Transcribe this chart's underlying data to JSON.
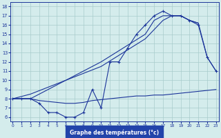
{
  "title": "Graphe des températures (°c)",
  "bg_color": "#d4ecec",
  "line_color": "#1a3399",
  "grid_color": "#a8cccc",
  "label_bg": "#2244aa",
  "xlim": [
    -0.3,
    23.3
  ],
  "ylim": [
    5.5,
    18.5
  ],
  "xticks": [
    0,
    1,
    2,
    3,
    4,
    5,
    6,
    7,
    8,
    9,
    10,
    11,
    12,
    13,
    14,
    15,
    16,
    17,
    18,
    19,
    20,
    21,
    22,
    23
  ],
  "yticks": [
    6,
    7,
    8,
    9,
    10,
    11,
    12,
    13,
    14,
    15,
    16,
    17,
    18
  ],
  "hours": [
    0,
    1,
    2,
    3,
    4,
    5,
    6,
    7,
    8,
    9,
    10,
    11,
    12,
    13,
    14,
    15,
    16,
    17,
    18,
    19,
    20,
    21,
    22,
    23
  ],
  "temp_main": [
    8.0,
    8.0,
    8.0,
    7.5,
    6.5,
    6.5,
    6.0,
    6.0,
    6.5,
    9.0,
    7.0,
    12.0,
    12.0,
    13.5,
    15.0,
    16.0,
    17.0,
    17.5,
    17.0,
    17.0,
    16.5,
    16.0,
    12.5,
    11.0
  ],
  "temp_upper_x": [
    0,
    2,
    10,
    15,
    16,
    17,
    18,
    19,
    20,
    21,
    22,
    23
  ],
  "temp_upper_y": [
    8.0,
    8.0,
    12.0,
    15.0,
    16.5,
    17.0,
    17.0,
    17.0,
    16.5,
    16.2,
    12.5,
    11.0
  ],
  "temp_upper2_x": [
    0,
    2,
    10,
    15,
    16,
    17,
    18,
    19,
    20,
    21
  ],
  "temp_upper2_y": [
    8.0,
    8.5,
    11.5,
    14.5,
    15.5,
    16.5,
    17.0,
    17.0,
    16.5,
    16.2
  ],
  "temp_lower": [
    8.0,
    8.0,
    8.0,
    7.8,
    7.7,
    7.6,
    7.5,
    7.5,
    7.6,
    7.8,
    7.9,
    8.0,
    8.1,
    8.2,
    8.3,
    8.3,
    8.4,
    8.4,
    8.5,
    8.6,
    8.7,
    8.8,
    8.9,
    9.0
  ]
}
